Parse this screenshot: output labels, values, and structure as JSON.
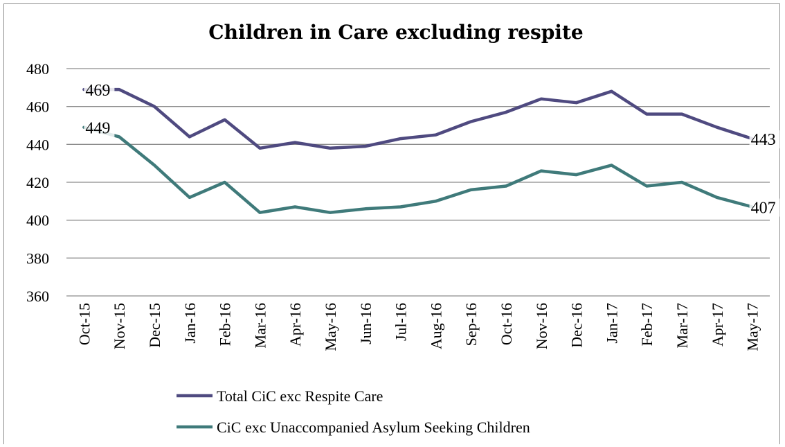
{
  "chart_data": {
    "type": "line",
    "title": "Children in Care excluding respite",
    "categories": [
      "Oct-15",
      "Nov-15",
      "Dec-15",
      "Jan-16",
      "Feb-16",
      "Mar-16",
      "Apr-16",
      "May-16",
      "Jun-16",
      "Jul-16",
      "Aug-16",
      "Sep-16",
      "Oct-16",
      "Nov-16",
      "Dec-16",
      "Jan-17",
      "Feb-17",
      "Mar-17",
      "Apr-17",
      "May-17"
    ],
    "ylim": [
      360,
      480
    ],
    "yticks": [
      "360",
      "380",
      "400",
      "420",
      "440",
      "460",
      "480"
    ],
    "grid": true,
    "legend_position": "bottom",
    "series": [
      {
        "name": "Total CiC exc Respite Care",
        "color": "#4f4a80",
        "values": [
          469,
          469,
          460,
          444,
          453,
          438,
          441,
          438,
          439,
          443,
          445,
          452,
          457,
          464,
          462,
          468,
          456,
          456,
          449,
          443
        ],
        "labels": [
          {
            "index": 0,
            "text": "469"
          },
          {
            "index": 19,
            "text": "443"
          }
        ]
      },
      {
        "name": "CiC exc Unaccompanied Asylum Seeking Children",
        "color": "#3f7a7a",
        "values": [
          449,
          444,
          429,
          412,
          420,
          404,
          407,
          404,
          406,
          407,
          410,
          416,
          418,
          426,
          424,
          429,
          418,
          420,
          412,
          407
        ],
        "labels": [
          {
            "index": 0,
            "text": "449"
          },
          {
            "index": 19,
            "text": "407"
          }
        ]
      }
    ]
  }
}
